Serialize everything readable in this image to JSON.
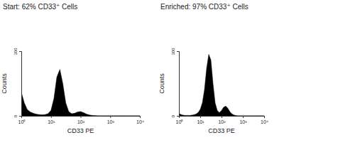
{
  "chart_data": [
    {
      "type": "area",
      "title": "Start: 62% CD33⁺ Cells",
      "x_label": "CD33 PE",
      "y_label": "Counts",
      "log": "x",
      "color": "#000000",
      "grid": false,
      "x": [
        1,
        1.26,
        1.58,
        2,
        2.51,
        3.16,
        3.98,
        5.01,
        6.31,
        7.94,
        10,
        12.6,
        15.8,
        20,
        25.1,
        31.6,
        39.8,
        50.1,
        63.1,
        79.4,
        100,
        126,
        158,
        200,
        251,
        316,
        398,
        501,
        631,
        794,
        1000,
        1260,
        1580,
        2000,
        2510,
        3160,
        3980,
        5010,
        6310,
        7940,
        10000
      ],
      "values": [
        110,
        60,
        30,
        18,
        12,
        8,
        6,
        5,
        6,
        10,
        25,
        80,
        180,
        215,
        150,
        60,
        20,
        10,
        12,
        18,
        20,
        15,
        8,
        4,
        2,
        1,
        0,
        0,
        0,
        0,
        0,
        0,
        0,
        0,
        0,
        0,
        0,
        0,
        0,
        0,
        0
      ],
      "xlim": [
        1,
        10000
      ],
      "xticks": [
        {
          "value": 1,
          "label": "10⁰"
        },
        {
          "value": 10,
          "label": "10¹"
        },
        {
          "value": 100,
          "label": "10²"
        },
        {
          "value": 1000,
          "label": "10³"
        },
        {
          "value": 10000,
          "label": "10⁴"
        }
      ],
      "ylim": [
        0,
        300
      ],
      "yticks": [
        0,
        300
      ]
    },
    {
      "type": "area",
      "title": "Enriched: 97% CD33⁺ Cells",
      "x_label": "CD33 PE",
      "y_label": "Counts",
      "log": "x",
      "color": "#000000",
      "grid": false,
      "x": [
        1,
        1.26,
        1.58,
        2,
        2.51,
        3.16,
        3.98,
        5.01,
        6.31,
        7.94,
        10,
        12.6,
        15.8,
        20,
        25.1,
        31.6,
        39.8,
        50.1,
        63.1,
        79.4,
        100,
        126,
        158,
        200,
        251,
        316,
        398,
        501,
        631,
        794,
        1000,
        1260,
        1580,
        2000,
        2510,
        3160,
        3980,
        5010,
        6310,
        7940,
        10000
      ],
      "values": [
        12,
        6,
        3,
        2,
        2,
        2,
        3,
        5,
        8,
        15,
        30,
        60,
        120,
        220,
        285,
        260,
        150,
        60,
        25,
        15,
        25,
        40,
        45,
        35,
        18,
        8,
        3,
        1,
        0,
        0,
        0,
        0,
        0,
        0,
        0,
        0,
        0,
        0,
        0,
        0,
        0
      ],
      "xlim": [
        1,
        10000
      ],
      "xticks": [
        {
          "value": 1,
          "label": "10⁰"
        },
        {
          "value": 10,
          "label": "10¹"
        },
        {
          "value": 100,
          "label": "10²"
        },
        {
          "value": 1000,
          "label": "10³"
        },
        {
          "value": 10000,
          "label": "10⁴"
        }
      ],
      "ylim": [
        0,
        300
      ],
      "yticks": [
        0,
        300
      ]
    }
  ]
}
